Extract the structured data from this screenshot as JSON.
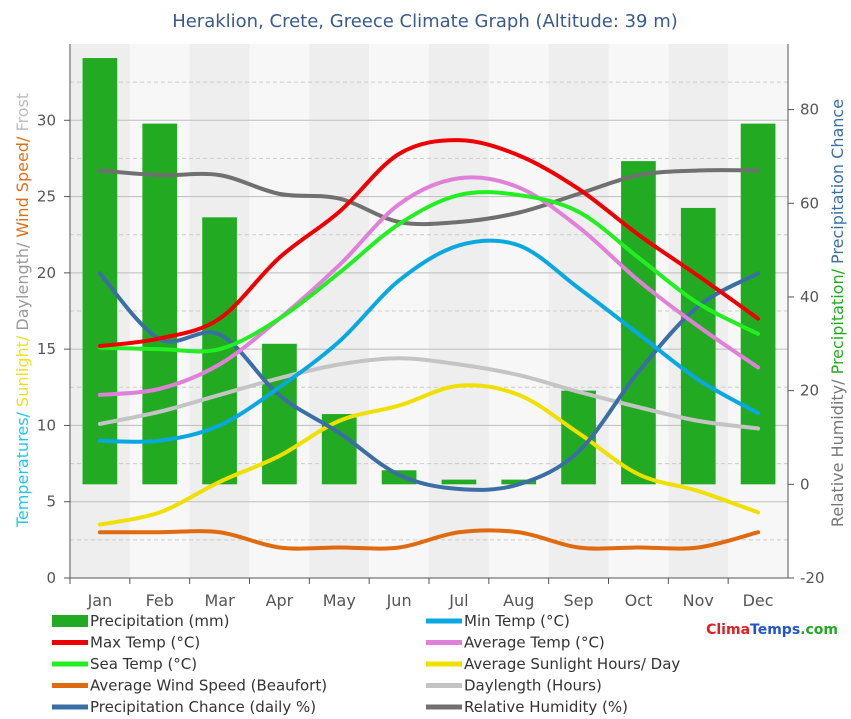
{
  "chart_data": {
    "type": "bar+line",
    "title": "Heraklion, Crete, Greece Climate Graph (Altitude: 39 m)",
    "categories": [
      "Jan",
      "Feb",
      "Mar",
      "Apr",
      "May",
      "Jun",
      "Jul",
      "Aug",
      "Sep",
      "Oct",
      "Nov",
      "Dec"
    ],
    "left_axis": {
      "label_parts": [
        {
          "text": "Temperatures",
          "color": "#1ec8e6"
        },
        {
          "text": "/ ",
          "color": "#1ec8e6"
        },
        {
          "text": "Sunlight",
          "color": "#f0e020"
        },
        {
          "text": "/ ",
          "color": "#f0e020"
        },
        {
          "text": "Daylength",
          "color": "#999999"
        },
        {
          "text": "/ ",
          "color": "#999999"
        },
        {
          "text": "Wind Speed",
          "color": "#e07018"
        },
        {
          "text": "/ ",
          "color": "#e07018"
        },
        {
          "text": "Frost",
          "color": "#bbbbbb"
        }
      ],
      "ylim": [
        0,
        35
      ],
      "ticks": [
        0,
        5,
        10,
        15,
        20,
        25,
        30
      ]
    },
    "right_axis": {
      "label_parts": [
        {
          "text": "Relative Humidity",
          "color": "#777777"
        },
        {
          "text": "/ ",
          "color": "#777777"
        },
        {
          "text": "Precipitation",
          "color": "#22aa22"
        },
        {
          "text": "/ ",
          "color": "#22aa22"
        },
        {
          "text": "Precipitation Chance",
          "color": "#3a6ea5"
        }
      ],
      "ylim": [
        -20,
        94
      ],
      "ticks": [
        -20,
        0,
        20,
        40,
        60,
        80
      ]
    },
    "bars": {
      "name": "Precipitation (mm)",
      "color": "#22aa22",
      "axis": "right",
      "values": [
        91,
        77,
        57,
        30,
        15,
        3,
        1,
        1,
        20,
        69,
        59,
        77
      ]
    },
    "series": [
      {
        "name": "Max Temp (°C)",
        "color": "#ee0000",
        "axis": "left",
        "values": [
          15.2,
          15.7,
          17.0,
          21.0,
          24.0,
          27.8,
          28.7,
          27.7,
          25.5,
          22.5,
          19.8,
          17.0
        ]
      },
      {
        "name": "Min Temp (°C)",
        "color": "#0aa8e0",
        "axis": "left",
        "values": [
          9.0,
          9.0,
          10.0,
          12.5,
          15.5,
          19.5,
          21.8,
          21.8,
          19.0,
          16.0,
          13.0,
          10.8
        ]
      },
      {
        "name": "Average Temp (°C)",
        "color": "#e080d8",
        "axis": "left",
        "values": [
          12.0,
          12.4,
          14.0,
          17.0,
          20.5,
          24.5,
          26.2,
          25.6,
          23.0,
          19.5,
          16.5,
          13.8
        ]
      },
      {
        "name": "Sea Temp (°C)",
        "color": "#22ee22",
        "axis": "left",
        "values": [
          15.1,
          15.0,
          15.0,
          17.0,
          20.0,
          23.2,
          25.1,
          25.1,
          24.0,
          21.0,
          18.0,
          16.0
        ]
      },
      {
        "name": "Average Sunlight Hours/ Day",
        "color": "#f0e000",
        "axis": "left",
        "values": [
          3.5,
          4.3,
          6.3,
          8.0,
          10.3,
          11.3,
          12.6,
          12.0,
          9.5,
          6.8,
          5.7,
          4.3
        ]
      },
      {
        "name": "Average Wind Speed (Beaufort)",
        "color": "#e06a10",
        "axis": "left",
        "values": [
          3.0,
          3.0,
          3.0,
          2.0,
          2.0,
          2.0,
          3.0,
          3.0,
          2.0,
          2.0,
          2.0,
          3.0
        ]
      },
      {
        "name": "Daylength (Hours)",
        "color": "#c4c4c4",
        "axis": "left",
        "values": [
          10.1,
          10.9,
          12.0,
          13.1,
          14.0,
          14.4,
          14.0,
          13.3,
          12.2,
          11.2,
          10.3,
          9.8
        ]
      },
      {
        "name": "Precipitation Chance (daily %)",
        "color": "#3a6ea5",
        "axis": "right",
        "values": [
          45,
          31,
          32,
          19,
          11,
          2,
          -1,
          0,
          7,
          24,
          38,
          45
        ]
      },
      {
        "name": "Relative Humidity (%)",
        "color": "#707070",
        "axis": "right",
        "values": [
          67,
          66,
          66,
          62,
          61,
          56,
          56,
          58,
          62,
          66,
          67,
          67
        ]
      }
    ],
    "legend": {
      "placement": "bottom",
      "items": [
        {
          "name": "Precipitation (mm)",
          "color": "#22aa22",
          "kind": "bar"
        },
        {
          "name": "Min Temp (°C)",
          "color": "#0aa8e0",
          "kind": "line"
        },
        {
          "name": "Max Temp (°C)",
          "color": "#ee0000",
          "kind": "line"
        },
        {
          "name": "Average Temp (°C)",
          "color": "#e080d8",
          "kind": "line"
        },
        {
          "name": "Sea Temp (°C)",
          "color": "#22ee22",
          "kind": "line"
        },
        {
          "name": "Average Sunlight Hours/ Day",
          "color": "#f0e000",
          "kind": "line"
        },
        {
          "name": "Average Wind Speed (Beaufort)",
          "color": "#e06a10",
          "kind": "line"
        },
        {
          "name": "Daylength (Hours)",
          "color": "#c4c4c4",
          "kind": "line"
        },
        {
          "name": "Precipitation Chance (daily %)",
          "color": "#3a6ea5",
          "kind": "line"
        },
        {
          "name": "Relative Humidity (%)",
          "color": "#707070",
          "kind": "line"
        }
      ]
    },
    "grid": true,
    "watermark": {
      "parts": [
        {
          "text": "Clima",
          "color": "#e02020"
        },
        {
          "text": "Temps",
          "color": "#2255cc"
        },
        {
          "text": ".com",
          "color": "#22aa22"
        }
      ]
    }
  }
}
